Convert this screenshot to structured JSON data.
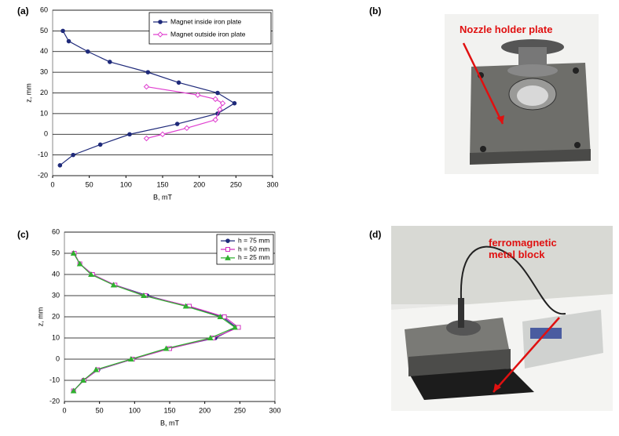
{
  "panel_labels": [
    "(a)",
    "(b)",
    "(c)",
    "(d)"
  ],
  "photos": [
    {
      "annotation": "Nozzle holder plate"
    },
    {
      "annotation": "ferromagnetic metal block"
    }
  ],
  "chart_data": [
    {
      "type": "line",
      "xlabel": "B, mT",
      "ylabel": "z, mm",
      "xlim": [
        0,
        300
      ],
      "xticks": [
        0,
        50,
        100,
        150,
        200,
        250,
        300
      ],
      "ylim": [
        -20,
        60
      ],
      "yticks": [
        -20,
        -10,
        0,
        10,
        20,
        30,
        40,
        50,
        60
      ],
      "grid": true,
      "legend": "top-right",
      "series": [
        {
          "name": "Magnet inside iron plate",
          "color": "#1f2a7a",
          "marker": "circle",
          "x": [
            14,
            22,
            48,
            78,
            130,
            172,
            225,
            248,
            225,
            170,
            105,
            65,
            28,
            10
          ],
          "y": [
            50,
            45,
            40,
            35,
            30,
            25,
            20,
            15,
            10,
            5,
            0,
            -5,
            -10,
            -15
          ]
        },
        {
          "name": "Magnet outside iron plate",
          "color": "#e040d0",
          "marker": "diamond",
          "x": [
            128,
            198,
            222,
            232,
            228,
            222,
            183,
            150,
            128
          ],
          "y": [
            23,
            19,
            17,
            15,
            12,
            7,
            3,
            0,
            -2
          ]
        }
      ]
    },
    {
      "type": "line",
      "xlabel": "B, mT",
      "ylabel": "z, mm",
      "xlim": [
        0,
        300
      ],
      "xticks": [
        0,
        50,
        100,
        150,
        200,
        250,
        300
      ],
      "ylim": [
        -20,
        60
      ],
      "yticks": [
        -20,
        -10,
        0,
        10,
        20,
        30,
        40,
        50,
        60
      ],
      "grid": true,
      "legend": "top-right",
      "series": [
        {
          "name": "h = 75 mm",
          "color": "#1f2a7a",
          "marker": "circle",
          "x": [
            14,
            22,
            40,
            72,
            118,
            175,
            225,
            245,
            215,
            148,
            97,
            48,
            27,
            13
          ],
          "y": [
            50,
            45,
            40,
            35,
            30,
            25,
            20,
            15,
            10,
            5,
            0,
            -5,
            -10,
            -15
          ]
        },
        {
          "name": "h = 50 mm",
          "color": "#d030c0",
          "marker": "square",
          "x": [
            14,
            22,
            40,
            72,
            115,
            178,
            228,
            248,
            212,
            150,
            97,
            47,
            28,
            13
          ],
          "y": [
            50,
            45,
            40,
            35,
            30,
            25,
            20,
            15,
            10,
            5,
            0,
            -5,
            -10,
            -15
          ]
        },
        {
          "name": "h = 25 mm",
          "color": "#30b030",
          "marker": "triangle",
          "x": [
            13,
            22,
            38,
            70,
            113,
            173,
            222,
            243,
            208,
            145,
            95,
            45,
            27,
            13
          ],
          "y": [
            50,
            45,
            40,
            35,
            30,
            25,
            20,
            15,
            10,
            5,
            0,
            -5,
            -10,
            -15
          ]
        }
      ]
    }
  ]
}
